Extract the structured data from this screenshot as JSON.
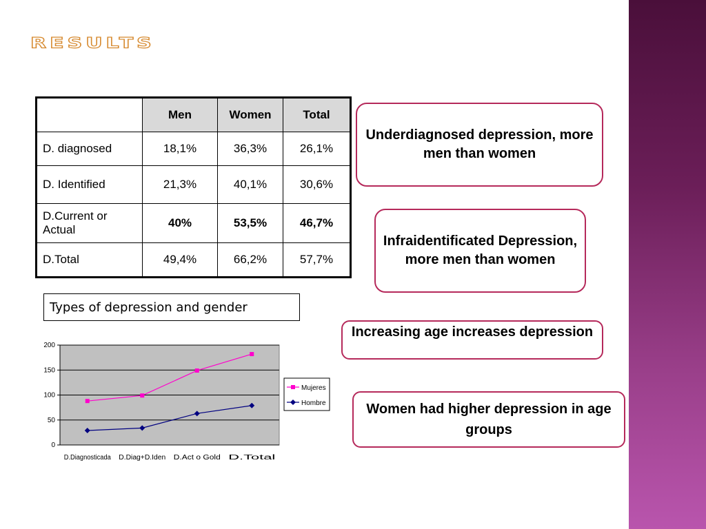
{
  "slide": {
    "title": "RESULTS",
    "colors": {
      "title_outline": "#d6892e",
      "box_border": "#b5285a",
      "side_band": "#7a2a6a"
    }
  },
  "table": {
    "headers": [
      "",
      "Men",
      "Women",
      "Total"
    ],
    "rows": [
      {
        "label": "D. diagnosed",
        "values": [
          "18,1%",
          "36,3%",
          "26,1%"
        ]
      },
      {
        "label": "D. Identified",
        "values": [
          "21,3%",
          "40,1%",
          "30,6%"
        ]
      },
      {
        "label": "D.Current or Actual",
        "values": [
          "40%",
          "53,5%",
          "46,7%"
        ]
      },
      {
        "label": "D.Total",
        "values": [
          "49,4%",
          "66,2%",
          "57,7%"
        ]
      }
    ]
  },
  "caption": "Types of depression and gender",
  "boxes": [
    "Underdiagnosed depression, more men than women",
    "Infraidentificated Depression, more men than women",
    "Increasing age increases depression",
    "Women had higher depression in age groups"
  ],
  "chart_data": {
    "type": "line",
    "categories": [
      "D.Diagnosticada",
      "D.Diag+D.Iden",
      "D.Act o Gold",
      "D.Total"
    ],
    "series": [
      {
        "name": "Mujeres",
        "values": [
          88,
          99,
          149,
          182
        ],
        "color": "#ff00cc",
        "marker": "square"
      },
      {
        "name": "Hombre",
        "values": [
          29,
          34,
          63,
          79
        ],
        "color": "#000080",
        "marker": "diamond"
      }
    ],
    "ylim": [
      0,
      200
    ],
    "yticks": [
      0,
      50,
      100,
      150,
      200
    ],
    "grid": true,
    "plot_background": "#c0c0c0",
    "legend": "right"
  }
}
